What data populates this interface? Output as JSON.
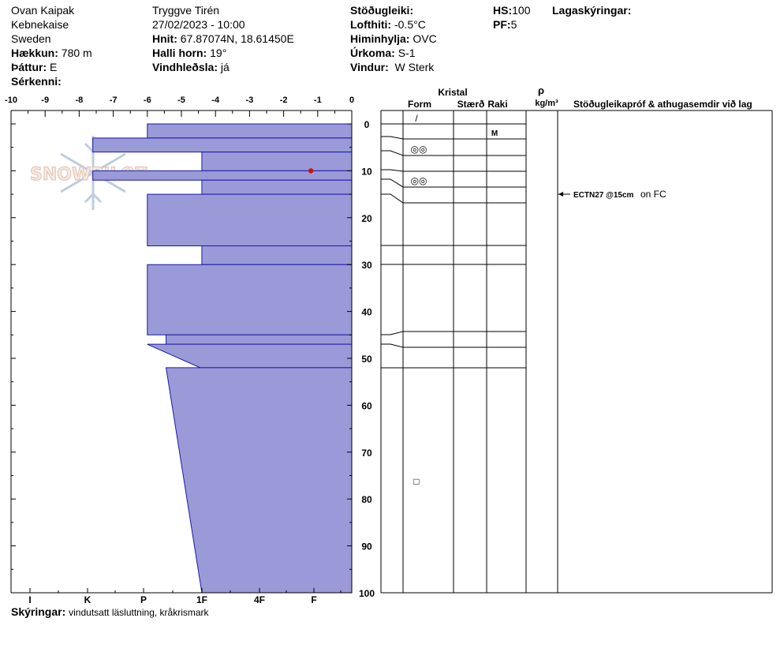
{
  "header": {
    "observer": "Ovan Kaipak",
    "area": "Kebnekaise",
    "country": "Sweden",
    "elevation_label": "Hækkun:",
    "elevation_value": "780 m",
    "aspect_label": "Þáttur:",
    "aspect_value": "E",
    "features_label": "Sérkenni:",
    "author": "Tryggve  Tirén",
    "datetime": "27/02/2023 - 10:00",
    "coords_label": "Hnit:",
    "coords_value": "67.87074N, 18.61450E",
    "slope_label": "Halli horn:",
    "slope_value": "19°",
    "wind_loading_label": "Vindhleðsla:",
    "wind_loading_value": "já",
    "stability_label": "Stöðugleiki:",
    "air_temp_label": "Lofthiti:",
    "air_temp_value": "-0.5°C",
    "sky_label": "Himinhylja:",
    "sky_value": "OVC",
    "precip_label": "Úrkoma:",
    "precip_value": "S-1",
    "wind_label": "Vindur:",
    "wind_value": "W Sterk",
    "hs_label": "HS:",
    "hs_value": "100",
    "pf_label": "PF:",
    "pf_value": "5",
    "layer_notes_label": "Lagaskýringar:"
  },
  "footer": {
    "notes_label": "Skýringar:",
    "notes_value": "vindutsatt läsluttning, kråkrismark"
  },
  "watermark": "SNOWPILOT",
  "columns": {
    "crystal": "Kristal",
    "form": "Form",
    "size": "Stærð",
    "moisture": "Raki",
    "rho": "ρ",
    "density_unit": "kg/m³",
    "tests": "Stöðugleikapróf & athugasemdir við lag"
  },
  "colors": {
    "hardness_fill": "#9a9ad8",
    "hardness_stroke": "#1a1aa0",
    "temp_point": "#d01010"
  },
  "chart_data": {
    "type": "snow-profile",
    "temperature_axis": {
      "ticks": [
        "-10",
        "-9",
        "-8",
        "-7",
        "-6",
        "-5",
        "-4",
        "-3",
        "-2",
        "-1",
        "0"
      ],
      "range": [
        -10,
        0
      ]
    },
    "hardness_axis": {
      "ticks": [
        "I",
        "K",
        "P",
        "1F",
        "4F",
        "F"
      ]
    },
    "depth_axis": {
      "ticks": [
        "0",
        "10",
        "20",
        "30",
        "40",
        "50",
        "60",
        "70",
        "80",
        "90",
        "100"
      ],
      "range": [
        0,
        100
      ]
    },
    "temperature_points": [
      {
        "depth": 10,
        "temp": -1.2
      }
    ],
    "layers": [
      {
        "top": 0,
        "bottom": 3,
        "hardness_top": 6.0,
        "hardness_bottom": 6.0
      },
      {
        "top": 3,
        "bottom": 6,
        "hardness_top": 7.6,
        "hardness_bottom": 7.6
      },
      {
        "top": 6,
        "bottom": 10,
        "hardness_top": 4.4,
        "hardness_bottom": 4.4
      },
      {
        "top": 10,
        "bottom": 12,
        "hardness_top": 7.6,
        "hardness_bottom": 7.6
      },
      {
        "top": 12,
        "bottom": 15,
        "hardness_top": 4.4,
        "hardness_bottom": 4.4
      },
      {
        "top": 15,
        "bottom": 26,
        "hardness_top": 6.0,
        "hardness_bottom": 6.0
      },
      {
        "top": 26,
        "bottom": 30,
        "hardness_top": 4.4,
        "hardness_bottom": 4.4
      },
      {
        "top": 30,
        "bottom": 45,
        "hardness_top": 6.0,
        "hardness_bottom": 6.0
      },
      {
        "top": 45,
        "bottom": 47,
        "hardness_top": 5.45,
        "hardness_bottom": 5.45
      },
      {
        "top": 47,
        "bottom": 52,
        "hardness_top": 6.0,
        "hardness_bottom": 4.45
      },
      {
        "top": 52,
        "bottom": 100,
        "hardness_top": 5.45,
        "hardness_bottom": 4.4
      }
    ],
    "layer_grains": [
      {
        "depth": 1.5,
        "symbol": "/"
      },
      {
        "depth": 8,
        "symbol": "◎◎"
      },
      {
        "depth": 15,
        "symbol": "◎◎"
      },
      {
        "depth": 79,
        "symbol": "□"
      }
    ],
    "layer_moisture": [
      {
        "depth": 4.5,
        "value": "M"
      }
    ],
    "stability_tests": [
      {
        "depth": 15,
        "label": "ECTN27 @15cm",
        "note": "on FC"
      }
    ]
  }
}
